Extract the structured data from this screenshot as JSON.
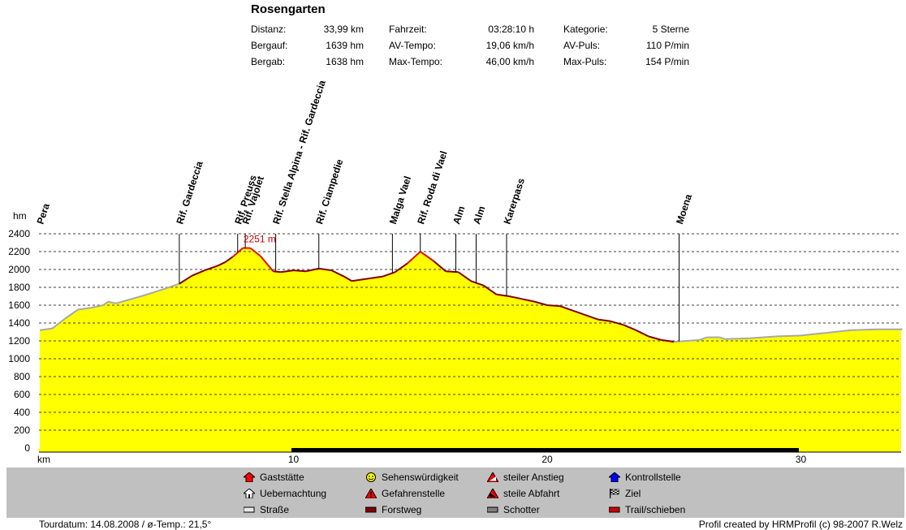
{
  "title": "Rosengarten",
  "stats": [
    {
      "label": "Distanz:",
      "value": "33,99 km"
    },
    {
      "label": "Bergauf:",
      "value": "1639 hm"
    },
    {
      "label": "Bergab:",
      "value": "1638 hm"
    },
    {
      "label": "Fahrzeit:",
      "value": "03:28:10 h"
    },
    {
      "label": "AV-Tempo:",
      "value": "19,06 km/h"
    },
    {
      "label": "Max-Tempo:",
      "value": "46,00 km/h"
    },
    {
      "label": "Kategorie:",
      "value": "5 Sterne"
    },
    {
      "label": "AV-Puls:",
      "value": "110 P/min"
    },
    {
      "label": "Max-Puls:",
      "value": "154 P/min"
    }
  ],
  "chart_data": {
    "type": "area",
    "ylabel": "hm",
    "xlabel": "km",
    "ylim": [
      0,
      2400
    ],
    "xlim": [
      0,
      34
    ],
    "yticks": [
      0,
      200,
      400,
      600,
      800,
      1000,
      1200,
      1400,
      1600,
      1800,
      2000,
      2200,
      2400
    ],
    "xticks": [
      10,
      20,
      30
    ],
    "grid": true,
    "max_label": "2251 m",
    "max_point": {
      "x": 7.9,
      "y": 2251
    },
    "x": [
      0,
      0.5,
      1,
      1.5,
      2,
      2.5,
      2.7,
      3,
      4,
      5,
      5.5,
      6,
      6.5,
      7,
      7.3,
      7.6,
      8,
      8.3,
      8.7,
      9.2,
      9.5,
      10,
      10.5,
      11,
      11.5,
      12,
      12.3,
      13,
      13.5,
      14,
      14.5,
      15,
      15.5,
      16,
      16.5,
      17,
      17.5,
      18,
      18.5,
      19,
      19.5,
      20,
      20.5,
      21,
      21.5,
      22,
      22.5,
      23,
      23.5,
      24,
      24.5,
      25,
      25.5,
      26,
      26.3,
      26.8,
      27,
      28,
      29,
      30,
      31,
      32,
      33,
      34
    ],
    "y": [
      1320,
      1340,
      1450,
      1550,
      1570,
      1600,
      1640,
      1620,
      1700,
      1790,
      1840,
      1930,
      1990,
      2040,
      2080,
      2140,
      2240,
      2240,
      2150,
      1980,
      1970,
      1990,
      1980,
      2010,
      1990,
      1920,
      1870,
      1900,
      1920,
      1970,
      2070,
      2200,
      2100,
      1980,
      1970,
      1870,
      1820,
      1720,
      1700,
      1670,
      1640,
      1600,
      1590,
      1540,
      1490,
      1440,
      1420,
      1380,
      1320,
      1250,
      1210,
      1190,
      1200,
      1210,
      1240,
      1240,
      1220,
      1230,
      1250,
      1260,
      1290,
      1320,
      1330,
      1330
    ],
    "waypoints": [
      {
        "name": "Pera",
        "x": 0
      },
      {
        "name": "Rif. Gardeccia",
        "x": 5.5
      },
      {
        "name": "Rif. Preuss",
        "x": 7.8
      },
      {
        "name": "Rif. Vajolet",
        "x": 8.1
      },
      {
        "name": "Rif. Stella Alpina - Rif. Gardeccia",
        "x": 9.3
      },
      {
        "name": "Rif. Ciampedie",
        "x": 11
      },
      {
        "name": "Malga Vael",
        "x": 13.9
      },
      {
        "name": "Rif. Roda di Vael",
        "x": 15
      },
      {
        "name": "Alm",
        "x": 16.4
      },
      {
        "name": "Alm",
        "x": 17.2
      },
      {
        "name": "Karerpass",
        "x": 18.4
      },
      {
        "name": "Moena",
        "x": 25.2
      }
    ]
  },
  "legend": [
    {
      "label": "Gaststätte",
      "icon": "house-red-icon",
      "color": "#ff0000"
    },
    {
      "label": "Uebernachtung",
      "icon": "house-outline-icon",
      "color": "#ffffff"
    },
    {
      "label": "Straße",
      "icon": "swatch-road-icon",
      "color": "#e8e8e8"
    },
    {
      "label": "Sehenswürdigkeit",
      "icon": "smiley-icon",
      "color": "#ffff00"
    },
    {
      "label": "Gefahrenstelle",
      "icon": "warning-icon",
      "color": "#ff0000"
    },
    {
      "label": "Forstweg",
      "icon": "swatch-forest-road-icon",
      "color": "#800000"
    },
    {
      "label": "steiler Anstieg",
      "icon": "steep-climb-icon",
      "color": "#ff0000"
    },
    {
      "label": "steile Abfahrt",
      "icon": "steep-descent-icon",
      "color": "#ff0000"
    },
    {
      "label": "Schotter",
      "icon": "swatch-gravel-icon",
      "color": "#808080"
    },
    {
      "label": "Kontrollstelle",
      "icon": "checkpoint-icon",
      "color": "#0000ff"
    },
    {
      "label": "Ziel",
      "icon": "finish-flag-icon",
      "color": "#000000"
    },
    {
      "label": "Trail/schieben",
      "icon": "swatch-trail-icon",
      "color": "#cc0000"
    }
  ],
  "footer": {
    "left": "Tourdatum: 14.08.2008  /  ø-Temp.: 21,5°",
    "right": "Profil created by HRMProfil (c) 98-2007 R.Welz"
  }
}
